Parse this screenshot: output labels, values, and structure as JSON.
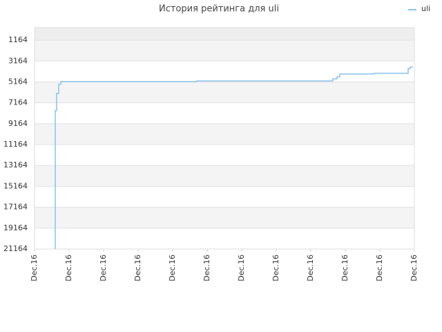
{
  "chart_data": {
    "type": "line",
    "title": "История рейтинга для uli",
    "x": [
      6,
      6,
      6.4,
      7,
      7.6,
      47,
      86,
      86.4,
      87.6,
      88.4,
      98.4,
      108,
      108.2,
      108.8,
      109.4
    ],
    "series": [
      {
        "name": "uli",
        "color": "#88c1ea",
        "values": [
          21164,
          7914,
          6258,
          5397,
          5132,
          5065,
          5065,
          4867,
          4668,
          4403,
          4337,
          4337,
          3873,
          3740,
          3674
        ]
      }
    ],
    "step": true,
    "xlim": [
      0,
      110
    ],
    "xticks": [
      {
        "value": 0,
        "label": "Dec.16"
      },
      {
        "value": 10,
        "label": "Dec.16"
      },
      {
        "value": 20,
        "label": "Dec.16"
      },
      {
        "value": 30,
        "label": "Dec.16"
      },
      {
        "value": 40,
        "label": "Dec.16"
      },
      {
        "value": 50,
        "label": "Dec.16"
      },
      {
        "value": 60,
        "label": "Dec.16"
      },
      {
        "value": 70,
        "label": "Dec.16"
      },
      {
        "value": 80,
        "label": "Dec.16"
      },
      {
        "value": 90,
        "label": "Dec.16"
      },
      {
        "value": 100,
        "label": "Dec.16"
      },
      {
        "value": 110,
        "label": "Dec.16"
      }
    ],
    "ylim": [
      21164,
      -36
    ],
    "yticks": [
      1164,
      3164,
      5164,
      7164,
      9164,
      11164,
      13164,
      15164,
      17164,
      19164,
      21164
    ],
    "grid": true,
    "legend": "top-right"
  }
}
